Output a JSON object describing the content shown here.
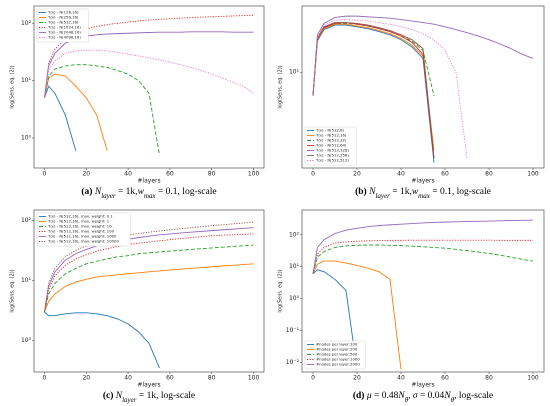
{
  "chart_data": [
    {
      "type": "line",
      "log_y": true,
      "panel": "(a)",
      "caption": [
        {
          "text": "(a)",
          "style": "bold"
        },
        {
          "text": " N",
          "style": "italic"
        },
        {
          "text": "layer",
          "style": "sub"
        },
        {
          "text": " = 1k,",
          "style": "normal"
        },
        {
          "text": "w",
          "style": "italic"
        },
        {
          "text": "max",
          "style": "sub"
        },
        {
          "text": " = 0.1, log-scale",
          "style": "normal"
        }
      ],
      "xlabel": "#layers",
      "ylabel": "log(Sens. eq. (2))",
      "legend": "upper left",
      "xlim": [
        -5,
        105
      ],
      "xticks": [
        0,
        20,
        40,
        60,
        80,
        100
      ],
      "ylim": [
        0.3,
        200
      ],
      "yticks": [
        {
          "value": 1,
          "label": "10⁰"
        },
        {
          "value": 10,
          "label": "10¹"
        },
        {
          "value": 100,
          "label": "10²"
        }
      ],
      "x": [
        0,
        2,
        5,
        10,
        15,
        20,
        25,
        30,
        35,
        40,
        45,
        50,
        55,
        60,
        65,
        70,
        75,
        80,
        85,
        90,
        95,
        100
      ],
      "series": [
        {
          "name": "T(x) - N(128,16)",
          "color": "#1f77b4",
          "dash": "solid",
          "values": [
            5,
            8,
            6,
            2.5,
            0.6,
            null,
            null,
            null,
            null,
            null,
            null,
            null,
            null,
            null,
            null,
            null,
            null,
            null,
            null,
            null,
            null,
            null
          ]
        },
        {
          "name": "T(x) - N(256,16)",
          "color": "#ff7f0e",
          "dash": "solid",
          "values": [
            5,
            11,
            13,
            12,
            8,
            5,
            2.5,
            0.6,
            null,
            null,
            null,
            null,
            null,
            null,
            null,
            null,
            null,
            null,
            null,
            null,
            null,
            null
          ]
        },
        {
          "name": "T(x) - N(512,16)",
          "color": "#2ca02c",
          "dash": "dashed",
          "values": [
            5,
            12,
            16,
            18,
            19,
            19,
            18,
            17,
            15,
            13,
            10,
            6,
            0.5,
            null,
            null,
            null,
            null,
            null,
            null,
            null,
            null,
            null
          ]
        },
        {
          "name": "T(x) - N(1024,16)",
          "color": "#d62728",
          "dash": "dotted",
          "values": [
            5,
            20,
            35,
            55,
            70,
            80,
            88,
            95,
            100,
            105,
            110,
            114,
            117,
            120,
            123,
            126,
            128,
            130,
            132,
            134,
            136,
            138
          ]
        },
        {
          "name": "T(x) - N(2048,16)",
          "color": "#9467bd",
          "dash": "solid",
          "values": [
            5,
            18,
            30,
            45,
            55,
            60,
            63,
            65,
            66,
            67,
            68,
            69,
            70,
            70,
            70,
            71,
            71,
            71,
            71,
            70,
            70,
            70
          ]
        },
        {
          "name": "T(x) - N(4096,16)",
          "color": "#e377c2",
          "dash": "dotted",
          "values": [
            5,
            15,
            22,
            30,
            33,
            34,
            34,
            33,
            31,
            29,
            27,
            25,
            23,
            21,
            19,
            17,
            15,
            13,
            11,
            9.5,
            8,
            6
          ]
        }
      ]
    },
    {
      "type": "line",
      "log_y": true,
      "panel": "(b)",
      "caption": [
        {
          "text": "(b)",
          "style": "bold"
        },
        {
          "text": " N",
          "style": "italic"
        },
        {
          "text": "layer",
          "style": "sub"
        },
        {
          "text": " = 1k,",
          "style": "normal"
        },
        {
          "text": "w",
          "style": "italic"
        },
        {
          "text": "max",
          "style": "sub"
        },
        {
          "text": " = 0.1, log-scale",
          "style": "normal"
        }
      ],
      "xlabel": "#layers",
      "ylabel": "log(Sens. eq. (2))",
      "legend": "lower left",
      "xlim": [
        -5,
        105
      ],
      "xticks": [
        0,
        20,
        40,
        60,
        80,
        100
      ],
      "ylim": [
        0.6,
        70
      ],
      "yticks": [
        {
          "value": 10,
          "label": "10¹"
        }
      ],
      "x": [
        0,
        2,
        5,
        10,
        15,
        20,
        25,
        30,
        35,
        40,
        45,
        50,
        55,
        60,
        65,
        70,
        75,
        80,
        85,
        90,
        95,
        100
      ],
      "series": [
        {
          "name": "T(x) - N(512,8)",
          "color": "#1f77b4",
          "dash": "solid",
          "values": [
            5,
            25,
            35,
            40,
            40,
            38,
            36,
            33,
            30,
            26,
            21,
            15,
            0.7,
            null,
            null,
            null,
            null,
            null,
            null,
            null,
            null,
            null
          ]
        },
        {
          "name": "T(x) - N(512,16)",
          "color": "#ff7f0e",
          "dash": "solid",
          "values": [
            5,
            26,
            36,
            41,
            41,
            39,
            37,
            34,
            31,
            27,
            22,
            16,
            1,
            null,
            null,
            null,
            null,
            null,
            null,
            null,
            null,
            null
          ]
        },
        {
          "name": "T(x) - N(512,32)",
          "color": "#2ca02c",
          "dash": "dashed",
          "values": [
            5,
            27,
            37,
            42,
            42,
            41,
            39,
            36,
            33,
            29,
            25,
            19,
            5,
            null,
            null,
            null,
            null,
            null,
            null,
            null,
            null,
            null
          ]
        },
        {
          "name": "T(x) - N(512,64)",
          "color": "#d62728",
          "dash": "solid",
          "values": [
            5,
            27,
            37,
            42,
            43,
            41,
            39,
            36,
            33,
            29,
            24,
            17,
            0.8,
            null,
            null,
            null,
            null,
            null,
            null,
            null,
            null,
            null
          ]
        },
        {
          "name": "T(x) - N(512,128)",
          "color": "#9467bd",
          "dash": "solid",
          "values": [
            5,
            30,
            42,
            50,
            52,
            52,
            51,
            50,
            49,
            47,
            45,
            43,
            41,
            38,
            35,
            32,
            29,
            26,
            23,
            20,
            17,
            15
          ]
        },
        {
          "name": "T(x) - N(512,256)",
          "color": "#8c564b",
          "dash": "solid",
          "values": [
            5,
            27,
            38,
            43,
            43,
            42,
            40,
            37,
            34,
            30,
            26,
            20,
            0.8,
            null,
            null,
            null,
            null,
            null,
            null,
            null,
            null,
            null
          ]
        },
        {
          "name": "T(x) - N(512,512)",
          "color": "#e377c2",
          "dash": "dotted",
          "values": [
            5,
            28,
            40,
            46,
            47,
            46,
            45,
            43,
            41,
            38,
            35,
            31,
            26,
            19,
            10,
            0.8,
            null,
            null,
            null,
            null,
            null,
            null
          ]
        }
      ]
    },
    {
      "type": "line",
      "log_y": true,
      "panel": "(c)",
      "caption": [
        {
          "text": "(c)",
          "style": "bold"
        },
        {
          "text": " N",
          "style": "italic"
        },
        {
          "text": "layer",
          "style": "sub"
        },
        {
          "text": " = 1k, log-scale",
          "style": "normal"
        }
      ],
      "xlabel": "#layers",
      "ylabel": "log(Sens. eq. (2))",
      "legend": "upper left",
      "xlim": [
        -5,
        105
      ],
      "xticks": [
        0,
        20,
        40,
        60,
        80,
        100
      ],
      "ylim": [
        0.3,
        150
      ],
      "yticks": [
        {
          "value": 1,
          "label": "10⁰"
        },
        {
          "value": 10,
          "label": "10¹"
        },
        {
          "value": 100,
          "label": "10²"
        }
      ],
      "x": [
        0,
        2,
        5,
        10,
        15,
        20,
        25,
        30,
        35,
        40,
        45,
        50,
        55,
        60,
        65,
        70,
        75,
        80,
        85,
        90,
        95,
        100
      ],
      "series": [
        {
          "name": "T(x) - N(512,16), max. weight: 0.1",
          "color": "#1f77b4",
          "dash": "solid",
          "values": [
            3,
            2.6,
            2.6,
            2.8,
            2.9,
            2.9,
            2.8,
            2.6,
            2.3,
            1.9,
            1.4,
            0.9,
            0.35,
            null,
            null,
            null,
            null,
            null,
            null,
            null,
            null,
            null
          ]
        },
        {
          "name": "T(x) - N(512,16), max. weight: 1",
          "color": "#ff7f0e",
          "dash": "solid",
          "values": [
            3,
            4.5,
            6,
            8,
            9.5,
            10.5,
            11.5,
            12,
            12.5,
            13,
            13.5,
            14,
            14.5,
            15,
            15.5,
            16,
            16.5,
            17,
            17.5,
            18,
            18.5,
            19
          ]
        },
        {
          "name": "T(x) - N(512,16), max. weight: 10",
          "color": "#2ca02c",
          "dash": "dashed",
          "values": [
            3,
            6,
            9,
            13,
            16,
            19,
            21,
            23,
            25,
            26,
            28,
            29,
            30,
            31,
            32,
            33,
            34,
            35,
            36,
            37,
            38,
            39
          ]
        },
        {
          "name": "T(x) - N(512,16), max. weight: 100",
          "color": "#d62728",
          "dash": "dotted",
          "values": [
            3,
            7,
            12,
            18,
            23,
            27,
            31,
            34,
            37,
            40,
            42,
            44,
            46,
            48,
            50,
            52,
            54,
            56,
            57,
            58,
            59,
            60
          ]
        },
        {
          "name": "T(x) - N(512,16), max. weight: 1000",
          "color": "#9467bd",
          "dash": "solid",
          "values": [
            3,
            8,
            14,
            22,
            28,
            33,
            38,
            42,
            46,
            49,
            52,
            55,
            58,
            60,
            62,
            64,
            66,
            68,
            70,
            72,
            74,
            76
          ]
        },
        {
          "name": "T(x) - N(512,16), max. weight: 10000",
          "color": "#8c564b",
          "dash": "dotted",
          "values": [
            3,
            9,
            16,
            25,
            32,
            38,
            44,
            49,
            53,
            57,
            61,
            64,
            67,
            70,
            73,
            76,
            79,
            82,
            85,
            88,
            91,
            94
          ]
        }
      ]
    },
    {
      "type": "line",
      "log_y": true,
      "panel": "(d)",
      "caption": [
        {
          "text": "(d)",
          "style": "bold"
        },
        {
          "text": " μ",
          "style": "italic"
        },
        {
          "text": " = 0.48",
          "style": "normal"
        },
        {
          "text": "N",
          "style": "italic"
        },
        {
          "text": "θ",
          "style": "sub"
        },
        {
          "text": ", ",
          "style": "normal"
        },
        {
          "text": "σ",
          "style": "italic"
        },
        {
          "text": " = 0.04",
          "style": "normal"
        },
        {
          "text": "N",
          "style": "italic"
        },
        {
          "text": "θ",
          "style": "sub"
        },
        {
          "text": ", log-scale",
          "style": "normal"
        }
      ],
      "xlabel": "#layers",
      "ylabel": "log(Sens. eq. (2))",
      "legend": "lower left",
      "xlim": [
        -5,
        105
      ],
      "xticks": [
        0,
        20,
        40,
        60,
        80,
        100
      ],
      "ylim": [
        0.005,
        600
      ],
      "yticks": [
        {
          "value": 0.01,
          "label": "10⁻²"
        },
        {
          "value": 0.1,
          "label": "10⁻¹"
        },
        {
          "value": 1,
          "label": "10⁰"
        },
        {
          "value": 10,
          "label": "10¹"
        },
        {
          "value": 100,
          "label": "10²"
        }
      ],
      "x": [
        0,
        2,
        5,
        10,
        15,
        20,
        25,
        30,
        35,
        40,
        45,
        50,
        55,
        60,
        65,
        70,
        75,
        80,
        85,
        90,
        95,
        100
      ],
      "series": [
        {
          "name": "#nodes per layer:100",
          "color": "#1f77b4",
          "dash": "solid",
          "values": [
            6,
            8,
            7,
            4,
            1.8,
            0.006,
            null,
            null,
            null,
            null,
            null,
            null,
            null,
            null,
            null,
            null,
            null,
            null,
            null,
            null,
            null,
            null
          ]
        },
        {
          "name": "#nodes per layer:200",
          "color": "#ff7f0e",
          "dash": "solid",
          "values": [
            6,
            12,
            15,
            15,
            13,
            11,
            9,
            7,
            4,
            0.006,
            null,
            null,
            null,
            null,
            null,
            null,
            null,
            null,
            null,
            null,
            null,
            null
          ]
        },
        {
          "name": "#nodes per layer:500",
          "color": "#2ca02c",
          "dash": "dashed",
          "values": [
            6,
            20,
            30,
            40,
            45,
            47,
            48,
            48,
            47,
            46,
            44,
            42,
            40,
            38,
            35,
            32,
            29,
            26,
            23,
            20,
            17,
            15
          ]
        },
        {
          "name": "#nodes per layer:1000",
          "color": "#d62728",
          "dash": "dotted",
          "values": [
            6,
            25,
            40,
            55,
            60,
            63,
            65,
            66,
            67,
            67,
            68,
            68,
            68,
            68,
            68,
            68,
            68,
            68,
            67,
            67,
            67,
            67
          ]
        },
        {
          "name": "#nodes per layer:2000",
          "color": "#9467bd",
          "dash": "solid",
          "values": [
            6,
            40,
            70,
            110,
            140,
            160,
            180,
            195,
            205,
            215,
            225,
            235,
            245,
            250,
            255,
            260,
            265,
            270,
            275,
            280,
            285,
            290
          ]
        }
      ]
    }
  ]
}
